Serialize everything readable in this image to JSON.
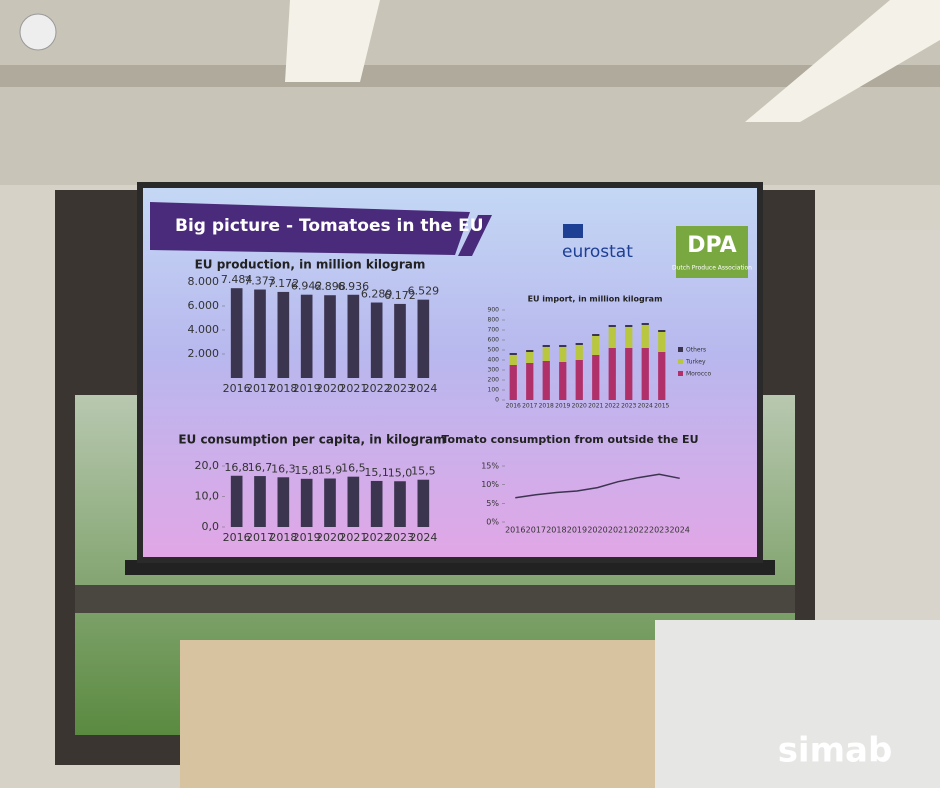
{
  "slide": {
    "title": "Big picture - Tomatoes in the EU",
    "logo_eurostat": "eurostat",
    "logo_dpa": "DPA",
    "dpa_subtitle": "Dutch Produce Association"
  },
  "watermark": "simab",
  "chart_data": [
    {
      "type": "bar",
      "title": "EU production, in million kilogram",
      "color": "#3c3550",
      "categories": [
        "2016",
        "2017",
        "2018",
        "2019",
        "2020",
        "2021",
        "2022",
        "2023",
        "2024"
      ],
      "values": [
        7484,
        7373,
        7172,
        6942,
        6898,
        6936,
        6289,
        6172,
        6529
      ],
      "value_labels": [
        "7.484",
        "7.373",
        "7.172",
        "6.942",
        "6.898",
        "6.936",
        "6.289",
        "6.172",
        "6.529"
      ],
      "ylim": [
        0,
        8000
      ],
      "yticks": [
        {
          "value": 2000,
          "label": "2.000"
        },
        {
          "value": 4000,
          "label": "4.000"
        },
        {
          "value": 6000,
          "label": "6.000"
        },
        {
          "value": 8000,
          "label": "8.000"
        }
      ]
    },
    {
      "type": "stacked_bar",
      "title": "EU import, in million kilogram",
      "categories": [
        "2016",
        "2017",
        "2018",
        "2019",
        "2020",
        "2021",
        "2022",
        "2023",
        "2024",
        "2015"
      ],
      "series": [
        {
          "name": "Morocco",
          "color": "#b0306a",
          "values": [
            350,
            370,
            390,
            380,
            400,
            450,
            520,
            520,
            520,
            480
          ]
        },
        {
          "name": "Turkey",
          "color": "#b8c640",
          "values": [
            100,
            110,
            140,
            150,
            150,
            190,
            210,
            210,
            230,
            200
          ]
        },
        {
          "name": "Others",
          "color": "#3c3550",
          "values": [
            20,
            20,
            20,
            20,
            20,
            20,
            20,
            20,
            20,
            20
          ]
        }
      ],
      "ylim": [
        0,
        900
      ],
      "yticks": [
        0,
        100,
        200,
        300,
        400,
        500,
        600,
        700,
        800,
        900
      ]
    },
    {
      "type": "bar",
      "title": "EU consumption per capita, in kilogram",
      "color": "#3c3550",
      "categories": [
        "2016",
        "2017",
        "2018",
        "2019",
        "2020",
        "2021",
        "2022",
        "2023",
        "2024"
      ],
      "values": [
        16.8,
        16.7,
        16.3,
        15.8,
        15.9,
        16.5,
        15.1,
        15.0,
        15.5
      ],
      "value_labels": [
        "16,8",
        "16,7",
        "16,3",
        "15,8",
        "15,9",
        "16,5",
        "15,1",
        "15,0",
        "15,5"
      ],
      "ylim": [
        0,
        20
      ],
      "yticks": [
        {
          "value": 0,
          "label": "0,0"
        },
        {
          "value": 10,
          "label": "10,0"
        },
        {
          "value": 20,
          "label": "20,0"
        }
      ]
    },
    {
      "type": "line",
      "title": "Tomato consumption from outside the EU",
      "color": "#3c3550",
      "categories": [
        "2016",
        "2017",
        "2018",
        "2019",
        "2020",
        "2021",
        "2022",
        "2023",
        "2024"
      ],
      "values": [
        6.5,
        7.3,
        7.9,
        8.3,
        9.2,
        10.8,
        11.9,
        12.8,
        11.7
      ],
      "ylim": [
        0,
        15
      ],
      "yticks": [
        {
          "value": 0,
          "label": "0%"
        },
        {
          "value": 5,
          "label": "5%"
        },
        {
          "value": 10,
          "label": "10%"
        },
        {
          "value": 15,
          "label": "15%"
        }
      ]
    }
  ]
}
